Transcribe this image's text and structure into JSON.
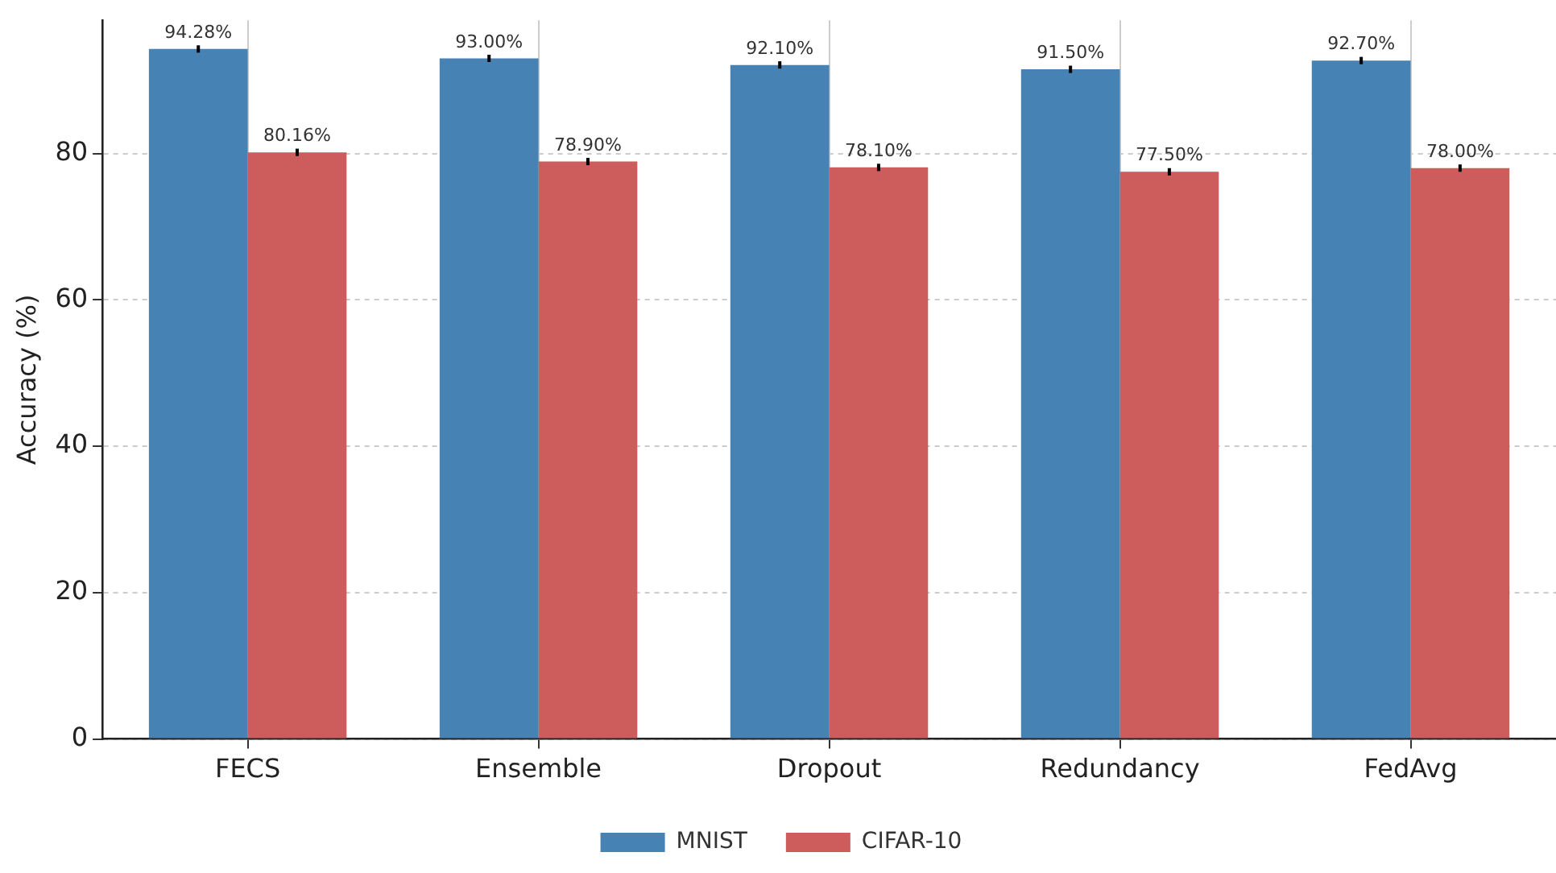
{
  "chart_data": {
    "type": "bar",
    "ylabel": "Accuracy (%)",
    "categories": [
      "FECS",
      "Ensemble",
      "Dropout",
      "Redundancy",
      "FedAvg"
    ],
    "series": [
      {
        "name": "MNIST",
        "color": "#4682b4",
        "values": [
          94.28,
          93.0,
          92.1,
          91.5,
          92.7
        ],
        "errors": [
          0.5,
          0.5,
          0.5,
          0.5,
          0.5
        ],
        "value_labels": [
          "94.28%",
          "93.00%",
          "92.10%",
          "91.50%",
          "92.70%"
        ]
      },
      {
        "name": "CIFAR-10",
        "color": "#cd5c5c",
        "values": [
          80.16,
          78.9,
          78.1,
          77.5,
          78.0
        ],
        "errors": [
          0.5,
          0.5,
          0.5,
          0.5,
          0.5
        ],
        "value_labels": [
          "80.16%",
          "78.90%",
          "78.10%",
          "77.50%",
          "78.00%"
        ]
      }
    ],
    "ylim": [
      0,
      98.2
    ],
    "yticks": [
      0,
      20,
      40,
      60,
      80
    ],
    "grid": true,
    "legend": "bottom"
  }
}
